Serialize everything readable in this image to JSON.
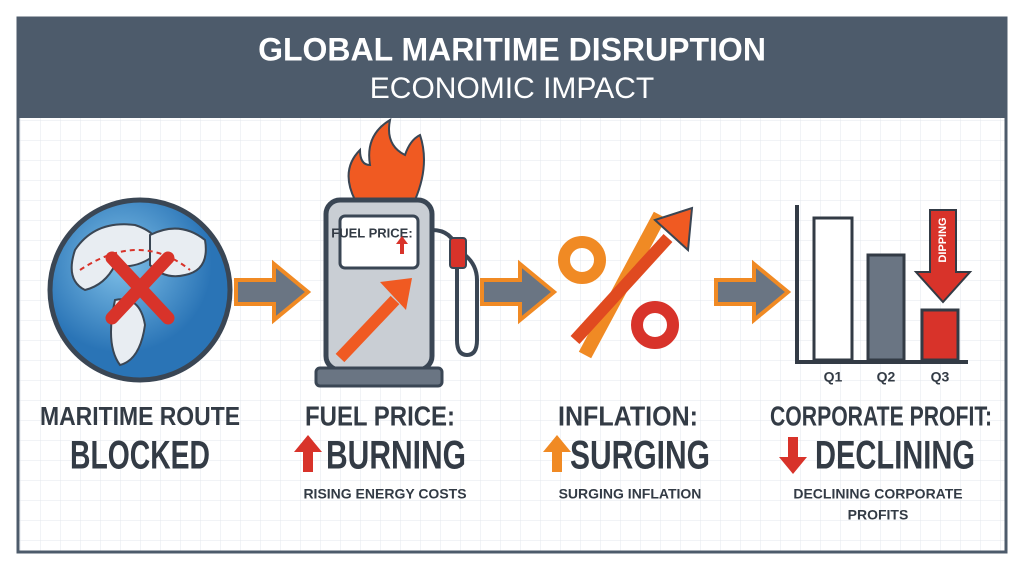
{
  "header": {
    "title": "GLOBAL MARITIME DISRUPTION",
    "subtitle": "ECONOMIC IMPACT"
  },
  "panels": [
    {
      "heading": [
        "MARITIME ROUTE",
        "BLOCKED"
      ]
    },
    {
      "icon_label": "FUEL PRICE:",
      "heading": [
        "FUEL PRICE:",
        "BURNING"
      ],
      "caption": [
        "RISING ENERGY COSTS"
      ]
    },
    {
      "heading": [
        "INFLATION:",
        "SURGING"
      ],
      "caption": [
        "SURGING INFLATION"
      ]
    },
    {
      "icon_label": "DIPPING",
      "chart_labels": [
        "Q1",
        "Q2",
        "Q3"
      ],
      "heading": [
        "CORPORATE PROFIT:",
        "DECLINING"
      ],
      "caption": [
        "DECLINING CORPORATE",
        "PROFITS"
      ]
    }
  ]
}
